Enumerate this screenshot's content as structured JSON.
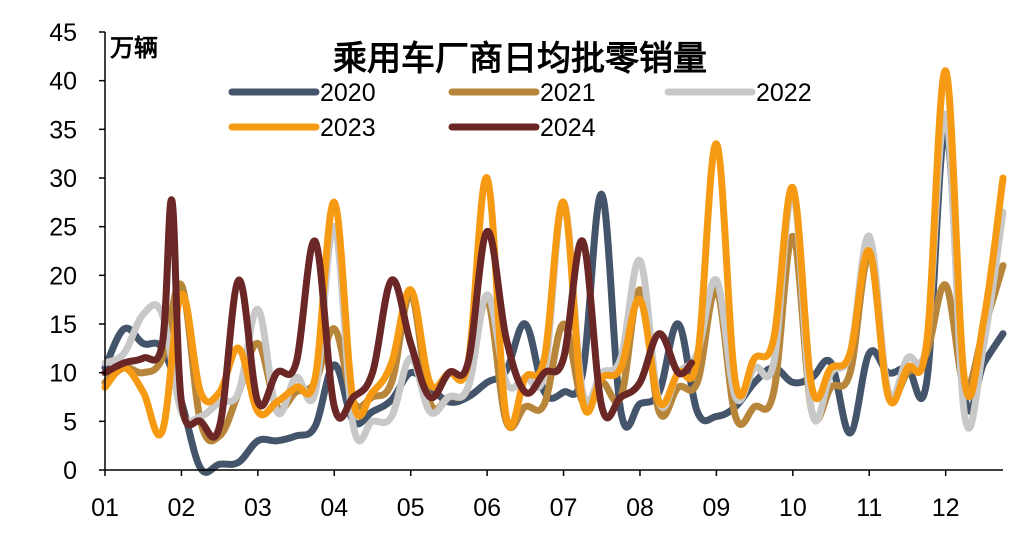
{
  "chart_data": {
    "type": "line",
    "title": "乘用车厂商日均批零销量",
    "unit_label": "万辆",
    "xlabel": "",
    "ylabel": "万辆",
    "ylim": [
      0,
      45
    ],
    "y_ticks": [
      0,
      5,
      10,
      15,
      20,
      25,
      30,
      35,
      40,
      45
    ],
    "x_ticks": [
      "01",
      "02",
      "03",
      "04",
      "05",
      "06",
      "07",
      "08",
      "09",
      "10",
      "11",
      "12"
    ],
    "x_unit": "week (4 per month)",
    "x_range": [
      0,
      47
    ],
    "legend_position": "top",
    "series": [
      {
        "name": "2020",
        "color": "#44546A",
        "x": [
          0,
          1,
          2,
          3,
          4,
          5,
          6,
          7,
          8,
          9,
          10,
          11,
          12,
          13,
          14,
          15,
          16,
          17,
          18,
          19,
          20,
          21,
          22,
          23,
          24,
          25,
          26,
          27,
          28,
          29,
          30,
          31,
          32,
          33,
          34,
          35,
          36,
          37,
          38,
          39,
          40,
          41,
          42,
          43,
          44,
          45,
          46,
          47
        ],
        "values": [
          10.5,
          14.5,
          13.0,
          12.5,
          7.0,
          0.2,
          0.6,
          0.8,
          3.0,
          3.0,
          3.5,
          4.5,
          10.8,
          5.0,
          6.0,
          7.2,
          10.0,
          8.5,
          7.0,
          7.5,
          9.0,
          10.2,
          15.0,
          8.0,
          8.0,
          10.0,
          28.3,
          6.0,
          6.8,
          8.0,
          15.0,
          6.0,
          5.5,
          6.5,
          9.0,
          10.5,
          9.0,
          9.5,
          11.0,
          3.8,
          12.0,
          10.0,
          10.5,
          9.0,
          35.0,
          7.5,
          11.0,
          14.0
        ]
      },
      {
        "name": "2021",
        "color": "#B8863B",
        "x": [
          0,
          1,
          2,
          3,
          4,
          5,
          6,
          7,
          8,
          9,
          10,
          11,
          12,
          13,
          14,
          15,
          16,
          17,
          18,
          19,
          20,
          21,
          22,
          23,
          24,
          25,
          26,
          27,
          28,
          29,
          30,
          31,
          32,
          33,
          34,
          35,
          36,
          37,
          38,
          39,
          40,
          41,
          42,
          43,
          44,
          45,
          46,
          47
        ],
        "values": [
          9.0,
          10.5,
          10.0,
          11.5,
          19.0,
          5.0,
          3.5,
          8.0,
          13.0,
          6.5,
          8.0,
          9.0,
          14.5,
          7.0,
          7.5,
          9.0,
          18.0,
          7.0,
          7.5,
          8.5,
          17.5,
          5.0,
          6.5,
          6.8,
          15.0,
          7.0,
          9.0,
          7.5,
          18.5,
          6.0,
          8.5,
          9.0,
          18.5,
          5.5,
          6.5,
          8.0,
          24.0,
          6.0,
          8.5,
          10.0,
          22.0,
          8.0,
          10.0,
          12.0,
          19.0,
          8.5,
          14.5,
          21.0
        ]
      },
      {
        "name": "2022",
        "color": "#C8C8C8",
        "x": [
          0,
          1,
          2,
          3,
          4,
          5,
          6,
          7,
          8,
          9,
          10,
          11,
          12,
          13,
          14,
          15,
          16,
          17,
          18,
          19,
          20,
          21,
          22,
          23,
          24,
          25,
          26,
          27,
          28,
          29,
          30,
          31,
          32,
          33,
          34,
          35,
          36,
          37,
          38,
          39,
          40,
          41,
          42,
          43,
          44,
          45,
          46,
          47
        ],
        "values": [
          11.0,
          12.0,
          16.0,
          16.0,
          6.0,
          5.5,
          7.0,
          8.0,
          16.5,
          6.0,
          9.5,
          8.0,
          25.0,
          4.5,
          5.0,
          5.5,
          11.5,
          6.0,
          7.5,
          8.5,
          18.0,
          9.0,
          9.5,
          10.0,
          27.5,
          8.0,
          10.0,
          11.5,
          21.5,
          7.0,
          10.0,
          12.0,
          19.5,
          7.5,
          10.5,
          11.0,
          28.5,
          6.0,
          10.0,
          12.0,
          24.0,
          8.0,
          11.5,
          13.0,
          36.5,
          5.5,
          13.0,
          26.5
        ]
      },
      {
        "name": "2023",
        "color": "#F79A13",
        "x": [
          0,
          1,
          2,
          3,
          4,
          5,
          6,
          7,
          8,
          9,
          10,
          11,
          12,
          13,
          14,
          15,
          16,
          17,
          18,
          19,
          20,
          21,
          22,
          23,
          24,
          25,
          26,
          27,
          28,
          29,
          30,
          31,
          32,
          33,
          34,
          35,
          36,
          37,
          38,
          39,
          40,
          41,
          42,
          43,
          44,
          45,
          46,
          47
        ],
        "values": [
          8.5,
          10.5,
          8.0,
          4.0,
          18.0,
          8.0,
          8.0,
          12.5,
          6.0,
          7.0,
          8.5,
          9.5,
          27.5,
          7.0,
          8.0,
          11.0,
          18.5,
          9.0,
          10.0,
          11.0,
          30.0,
          5.5,
          9.5,
          11.5,
          27.5,
          7.0,
          9.5,
          10.5,
          17.5,
          7.0,
          10.0,
          11.5,
          33.5,
          9.0,
          11.5,
          13.5,
          29.0,
          8.5,
          10.5,
          12.0,
          22.5,
          7.5,
          10.5,
          13.0,
          41.0,
          9.0,
          15.5,
          30.0
        ]
      },
      {
        "name": "2024",
        "color": "#6B2626",
        "x": [
          0,
          1,
          2,
          3,
          3.5,
          4,
          5,
          6,
          7,
          8,
          9,
          10,
          11,
          12,
          13,
          14,
          15,
          16,
          17,
          18,
          19,
          20,
          21,
          22,
          23,
          24,
          25,
          26,
          27,
          28,
          29,
          30,
          30.7
        ],
        "values": [
          10.0,
          11.0,
          11.5,
          13.0,
          27.7,
          7.0,
          5.0,
          4.5,
          19.5,
          7.0,
          10.0,
          11.0,
          23.5,
          6.5,
          7.5,
          10.0,
          19.5,
          13.0,
          7.5,
          10.0,
          11.0,
          24.5,
          13.5,
          8.0,
          10.0,
          11.5,
          23.5,
          6.5,
          7.5,
          9.0,
          14.0,
          10.0,
          11.0
        ]
      }
    ]
  }
}
